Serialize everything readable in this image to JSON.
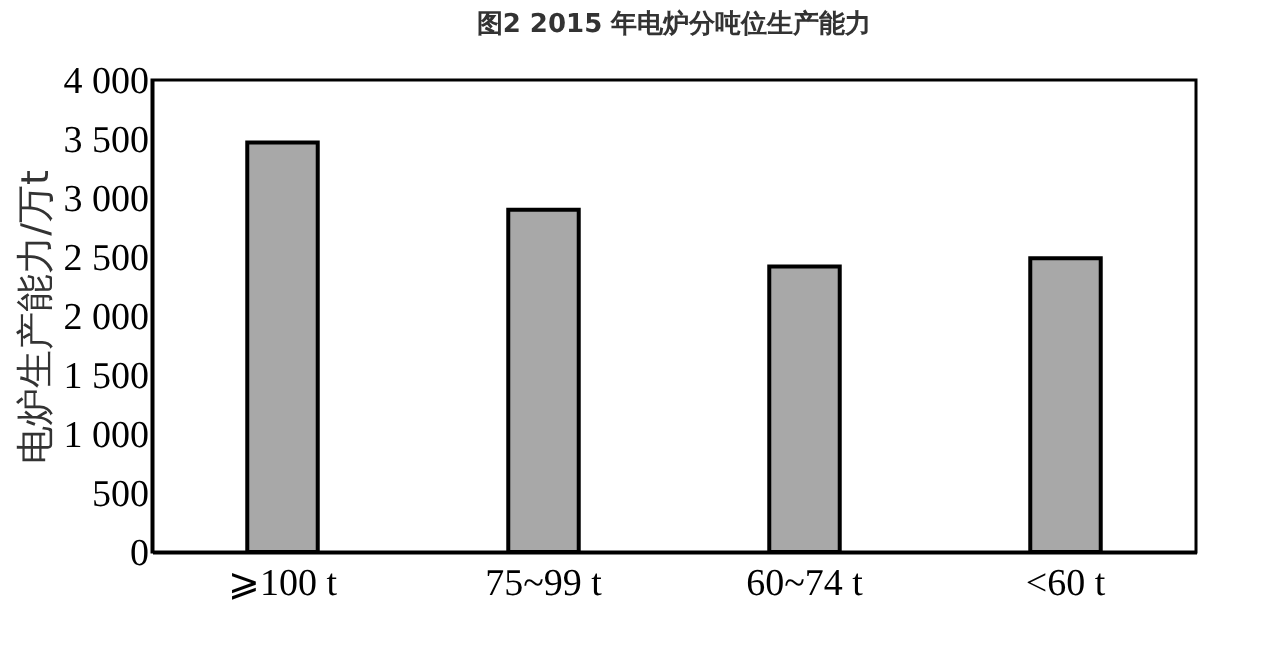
{
  "chart_data": {
    "type": "bar",
    "title": "图2 2015 年电炉分吨位生产能力",
    "ylabel": "电炉生产能力/万t",
    "categories": [
      "⩾100 t",
      "75~99 t",
      "60~74 t",
      "<60 t"
    ],
    "values": [
      3470,
      2900,
      2420,
      2490
    ],
    "color": "#a8a8a8",
    "ylim": [
      0,
      4000
    ],
    "yticks": [
      0,
      500,
      {
        "value": 1000,
        "label": "1 000"
      },
      {
        "value": 1500,
        "label": "1 500"
      },
      {
        "value": 2000,
        "label": "2 000"
      },
      {
        "value": 2500,
        "label": "2 500"
      },
      {
        "value": 3000,
        "label": "3 000"
      },
      {
        "value": 3500,
        "label": "3 500"
      },
      {
        "value": 4000,
        "label": "4 000"
      }
    ],
    "grid": false
  }
}
